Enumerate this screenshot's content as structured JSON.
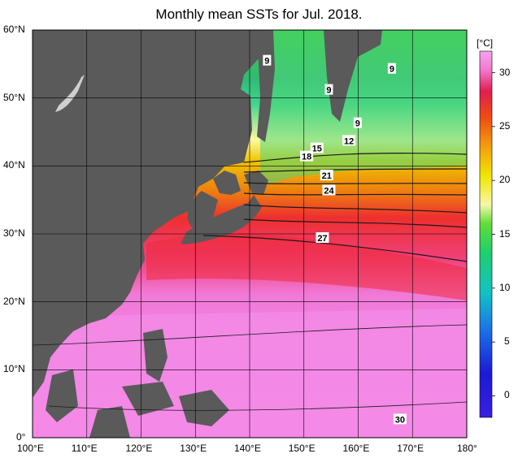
{
  "title": "Monthly mean SSTs for Jul. 2018.",
  "colors": {
    "land": "#5a5a5a",
    "grid": "#000000",
    "contour": "#1a1a1a"
  },
  "map": {
    "lon_min": 100,
    "lon_max": 180,
    "lat_min": 0,
    "lat_max": 60,
    "lon_ticks": [
      "100°E",
      "110°E",
      "120°E",
      "130°E",
      "140°E",
      "150°E",
      "160°E",
      "170°E",
      "180°"
    ],
    "lat_ticks": [
      "0°",
      "10°N",
      "20°N",
      "30°N",
      "40°N",
      "50°N",
      "60°N"
    ],
    "contour_labels": [
      {
        "text": "9",
        "lon": 143.2,
        "lat": 55.5
      },
      {
        "text": "9",
        "lon": 154.6,
        "lat": 51.2
      },
      {
        "text": "9",
        "lon": 166.2,
        "lat": 54.3
      },
      {
        "text": "9",
        "lon": 159.9,
        "lat": 46.3
      },
      {
        "text": "12",
        "lon": 158.3,
        "lat": 43.7
      },
      {
        "text": "15",
        "lon": 152.4,
        "lat": 42.6
      },
      {
        "text": "18",
        "lon": 150.5,
        "lat": 41.4
      },
      {
        "text": "21",
        "lon": 154.2,
        "lat": 38.6
      },
      {
        "text": "24",
        "lon": 154.6,
        "lat": 36.4
      },
      {
        "text": "27",
        "lon": 153.4,
        "lat": 29.4
      },
      {
        "text": "30",
        "lon": 167.7,
        "lat": 2.7
      }
    ]
  },
  "colorbar": {
    "unit": "[°C]",
    "tick_values": [
      0,
      5,
      10,
      15,
      20,
      25,
      30
    ],
    "tick_labels": [
      "0",
      "5",
      "10",
      "15",
      "20",
      "25",
      "30"
    ],
    "range": [
      -2,
      32
    ]
  }
}
